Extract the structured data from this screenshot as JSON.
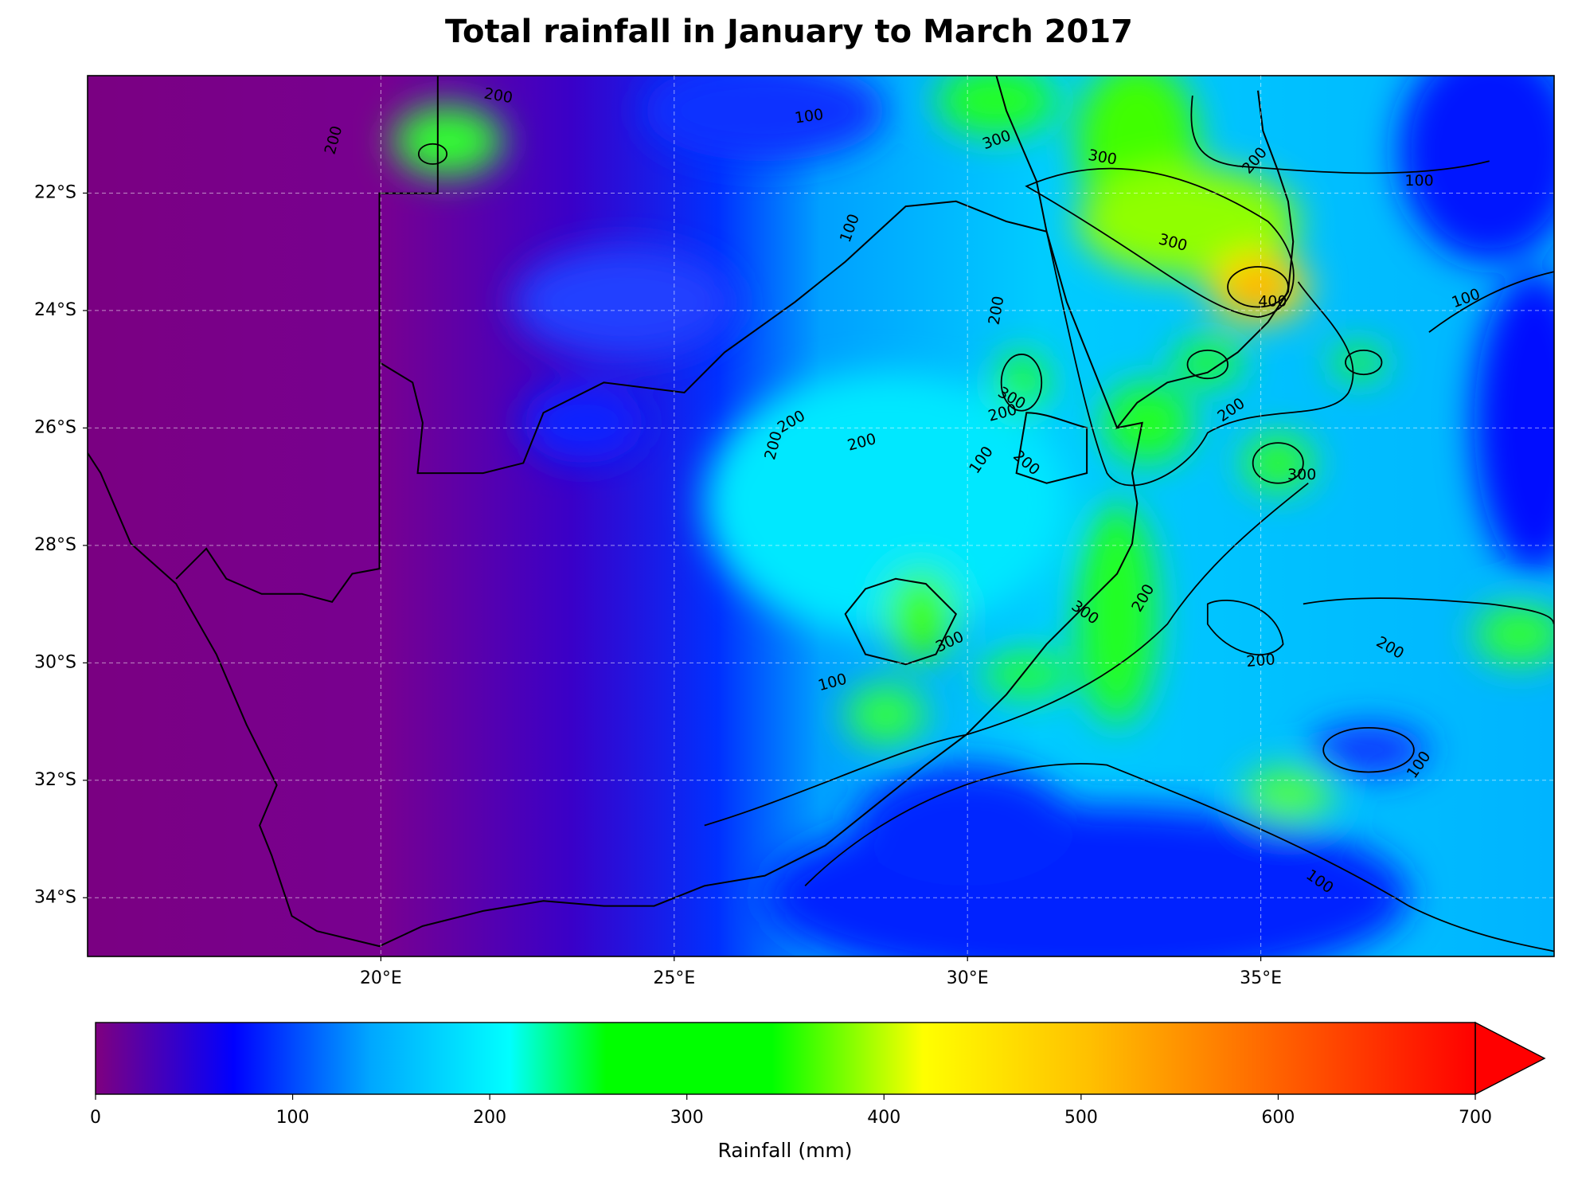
{
  "map": {
    "title": "Total rainfall in January to March 2017",
    "xlim": [
      15,
      40
    ],
    "ylim": [
      -35,
      -20
    ],
    "grid": true,
    "lon_ticks": [
      {
        "value": 20,
        "label": "20°E"
      },
      {
        "value": 25,
        "label": "25°E"
      },
      {
        "value": 30,
        "label": "30°E"
      },
      {
        "value": 35,
        "label": "35°E"
      }
    ],
    "lat_ticks": [
      {
        "value": -22,
        "label": "22°S"
      },
      {
        "value": -24,
        "label": "24°S"
      },
      {
        "value": -26,
        "label": "26°S"
      },
      {
        "value": -28,
        "label": "28°S"
      },
      {
        "value": -30,
        "label": "30°S"
      },
      {
        "value": -32,
        "label": "32°S"
      },
      {
        "value": -34,
        "label": "34°S"
      }
    ],
    "contour_labels": [
      200,
      200,
      100,
      300,
      300,
      200,
      100,
      100,
      300,
      400,
      100,
      200,
      300,
      200,
      200,
      200,
      200,
      200,
      100,
      200,
      300,
      200,
      300,
      300,
      200,
      200,
      100,
      100,
      100
    ]
  },
  "colorbar": {
    "label": "Rainfall (mm)",
    "lim": [
      0,
      700
    ],
    "ticks": [
      0,
      100,
      200,
      300,
      400,
      500,
      600,
      700
    ],
    "extend": "max"
  }
}
